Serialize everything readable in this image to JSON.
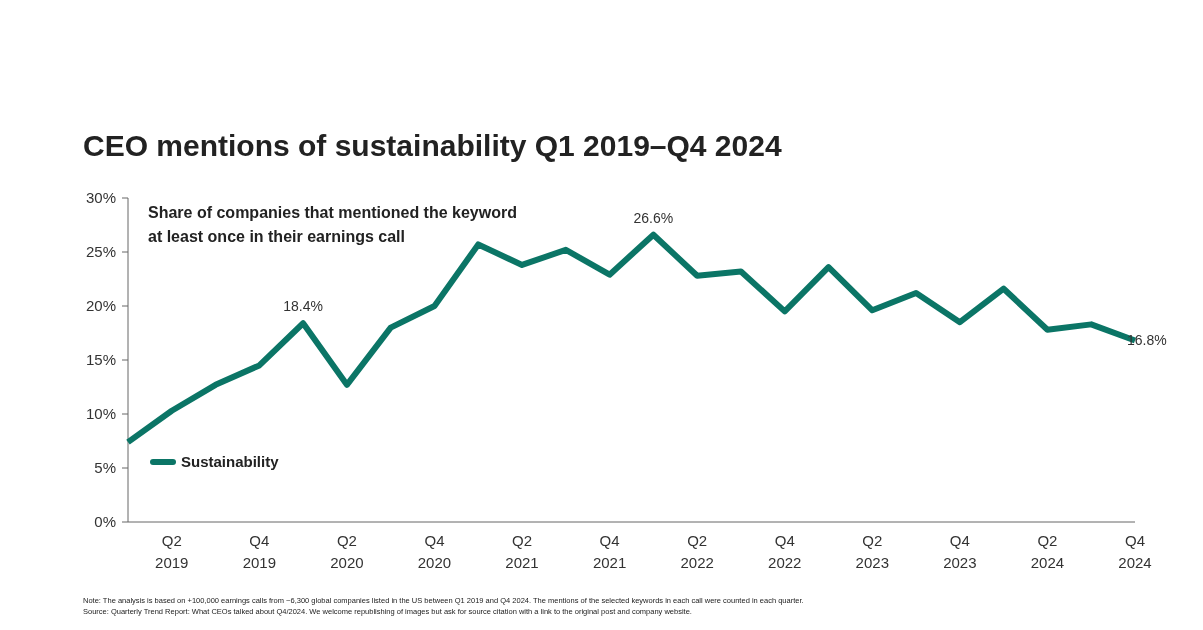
{
  "chart_data": {
    "type": "line",
    "title": "CEO mentions of sustainability Q1 2019–Q4 2024",
    "categories": [
      null,
      "Q2 2019",
      null,
      "Q4 2019",
      null,
      "Q2 2020",
      null,
      "Q4 2020",
      null,
      "Q2 2021",
      null,
      "Q4 2021",
      null,
      "Q2 2022",
      null,
      "Q4 2022",
      null,
      "Q2 2023",
      null,
      "Q4 2023",
      null,
      "Q2 2024",
      null,
      "Q4 2024"
    ],
    "series": [
      {
        "name": "Sustainability",
        "color": "#0b7566",
        "values": [
          7.4,
          10.3,
          12.7,
          14.5,
          18.4,
          12.7,
          18.0,
          20.0,
          25.7,
          23.8,
          25.2,
          22.9,
          26.6,
          22.8,
          23.2,
          19.5,
          23.6,
          19.6,
          21.2,
          18.5,
          21.6,
          17.8,
          18.3,
          16.8
        ],
        "value_labels": [
          null,
          null,
          null,
          null,
          "18.4%",
          null,
          null,
          null,
          null,
          null,
          null,
          null,
          "26.6%",
          null,
          null,
          null,
          null,
          null,
          null,
          null,
          null,
          null,
          null,
          "16.8%"
        ]
      }
    ],
    "ylim": [
      0,
      30
    ],
    "yticks": [
      {
        "value": 0,
        "label": "0%"
      },
      {
        "value": 5,
        "label": "5%"
      },
      {
        "value": 10,
        "label": "10%"
      },
      {
        "value": 15,
        "label": "15%"
      },
      {
        "value": 20,
        "label": "20%"
      },
      {
        "value": 25,
        "label": "25%"
      },
      {
        "value": 30,
        "label": "30%"
      }
    ],
    "grid": false,
    "legend": "bottom left",
    "marker": "none",
    "line_style": "solid",
    "annotations": [
      "Share of companies that mentioned the keyword at least once in their earnings call",
      "Note: The analysis is based on +100,000 earnings calls from ~6,300 global companies listed in the US between Q1 2019 and Q4 2024. The mentions of the selected keywords in each call were counted in each quarter.",
      "Source: Quarterly Trend Report: What CEOs talked about Q4/2024. We welcome republishing of images but ask for source citation with a link to the original post and company website."
    ]
  }
}
